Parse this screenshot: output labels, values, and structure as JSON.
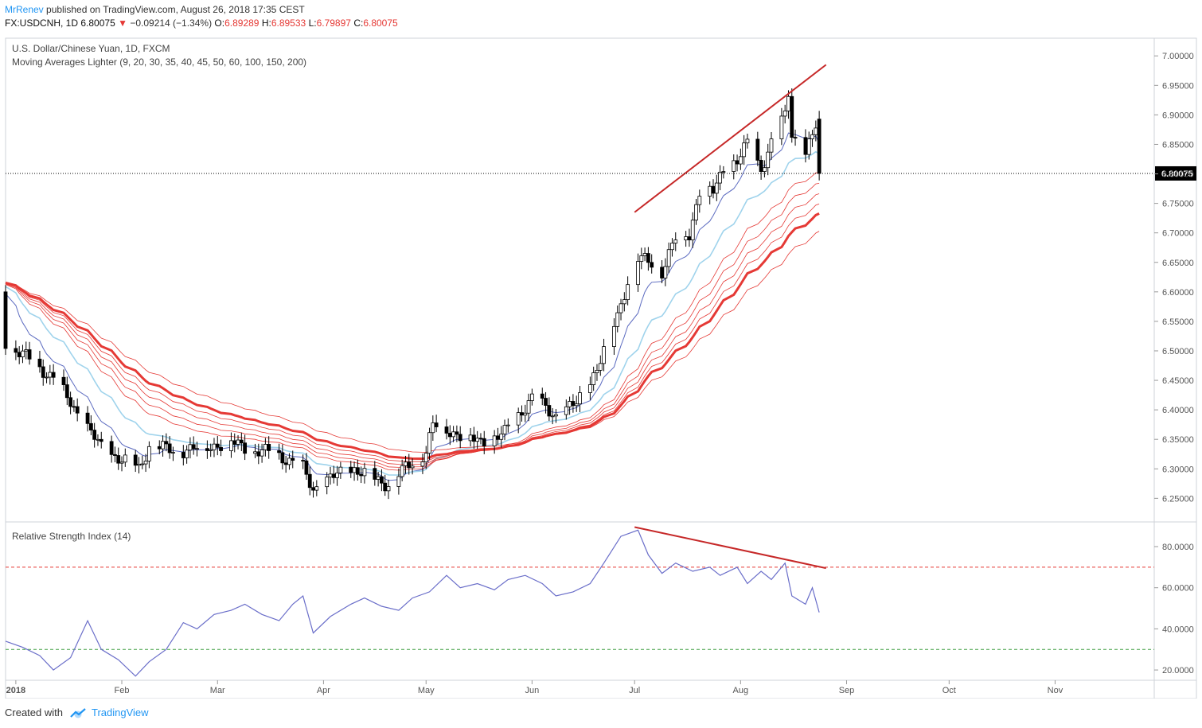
{
  "header": {
    "author": "MrRenev",
    "published": "published on TradingView.com, August 26, 2018 17:35 CEST",
    "symbol": "FX:USDCNH, 1D",
    "last": "6.80075",
    "change": "−0.09214 (−1.34%)",
    "o_label": "O:",
    "o_value": "6.89289",
    "h_label": "H:",
    "h_value": "6.89533",
    "l_label": "L:",
    "l_value": "6.79897",
    "c_label": "C:",
    "c_value": "6.80075"
  },
  "footer": {
    "created_with": "Created with",
    "brand": "TradingView"
  },
  "chart_data": [
    {
      "type": "candlestick",
      "title": "U.S. Dollar/Chinese Yuan, 1D, FXCM",
      "indicator": "Moving Averages Lighter (9, 20, 30, 35, 40, 45, 50, 60, 100, 150, 200)",
      "last_price_label": "6.80075",
      "ylim": [
        6.21,
        7.03
      ],
      "y_ticks": [
        "7.00000",
        "6.95000",
        "6.90000",
        "6.85000",
        "6.80000",
        "6.75000",
        "6.70000",
        "6.65000",
        "6.60000",
        "6.55000",
        "6.50000",
        "6.45000",
        "6.40000",
        "6.35000",
        "6.30000",
        "6.25000"
      ],
      "x_ticks": [
        "2018",
        "Feb",
        "Mar",
        "Apr",
        "May",
        "Jun",
        "Jul",
        "Aug",
        "Sep",
        "Oct",
        "Nov"
      ],
      "x_tick_dates": [
        "2018-01-01",
        "2018-02-01",
        "2018-03-01",
        "2018-04-01",
        "2018-05-01",
        "2018-06-01",
        "2018-07-01",
        "2018-08-01",
        "2018-09-01",
        "2018-10-01",
        "2018-11-01"
      ],
      "x_range": [
        "2017-12-29",
        "2018-11-30"
      ],
      "closes": [
        [
          "2017-12-29",
          6.515
        ],
        [
          "2018-01-12",
          6.455
        ],
        [
          "2018-01-26",
          6.335
        ],
        [
          "2018-02-06",
          6.3
        ],
        [
          "2018-02-09",
          6.34
        ],
        [
          "2018-02-16",
          6.33
        ],
        [
          "2018-02-23",
          6.335
        ],
        [
          "2018-03-05",
          6.345
        ],
        [
          "2018-03-12",
          6.33
        ],
        [
          "2018-03-19",
          6.325
        ],
        [
          "2018-03-26",
          6.3
        ],
        [
          "2018-03-29",
          6.265
        ],
        [
          "2018-04-05",
          6.29
        ],
        [
          "2018-04-10",
          6.3
        ],
        [
          "2018-04-17",
          6.28
        ],
        [
          "2018-04-20",
          6.275
        ],
        [
          "2018-04-25",
          6.3
        ],
        [
          "2018-05-01",
          6.33
        ],
        [
          "2018-05-03",
          6.375
        ],
        [
          "2018-05-10",
          6.36
        ],
        [
          "2018-05-17",
          6.345
        ],
        [
          "2018-05-24",
          6.36
        ],
        [
          "2018-05-29",
          6.4
        ],
        [
          "2018-06-01",
          6.42
        ],
        [
          "2018-06-08",
          6.39
        ],
        [
          "2018-06-14",
          6.41
        ],
        [
          "2018-06-20",
          6.47
        ],
        [
          "2018-06-26",
          6.56
        ],
        [
          "2018-06-29",
          6.62
        ],
        [
          "2018-07-02",
          6.655
        ],
        [
          "2018-07-06",
          6.65
        ],
        [
          "2018-07-09",
          6.635
        ],
        [
          "2018-07-13",
          6.69
        ],
        [
          "2018-07-17",
          6.7
        ],
        [
          "2018-07-20",
          6.77
        ],
        [
          "2018-07-24",
          6.77
        ],
        [
          "2018-07-27",
          6.81
        ],
        [
          "2018-07-31",
          6.82
        ],
        [
          "2018-08-03",
          6.85
        ],
        [
          "2018-08-07",
          6.81
        ],
        [
          "2018-08-10",
          6.85
        ],
        [
          "2018-08-14",
          6.9
        ],
        [
          "2018-08-15",
          6.94
        ],
        [
          "2018-08-16",
          6.87
        ],
        [
          "2018-08-20",
          6.83
        ],
        [
          "2018-08-23",
          6.88
        ],
        [
          "2018-08-24",
          6.80075
        ]
      ],
      "trendline_high": [
        [
          "2018-07-01",
          6.735
        ],
        [
          "2018-08-26",
          6.985
        ]
      ],
      "colors": {
        "ma_fast": "#5c6bc0",
        "ma_20": "#9fd3ec",
        "ma_red": "#e53935",
        "trendline": "#c62828"
      }
    },
    {
      "type": "line",
      "title": "Relative Strength Index (14)",
      "ylim": [
        15,
        92
      ],
      "y_ticks": [
        "80.0000",
        "60.0000",
        "40.0000",
        "20.0000"
      ],
      "levels": [
        70,
        30
      ],
      "x": [
        "2017-12-29",
        "2018-01-03",
        "2018-01-08",
        "2018-01-12",
        "2018-01-17",
        "2018-01-22",
        "2018-01-26",
        "2018-01-31",
        "2018-02-05",
        "2018-02-09",
        "2018-02-14",
        "2018-02-19",
        "2018-02-23",
        "2018-02-28",
        "2018-03-05",
        "2018-03-09",
        "2018-03-14",
        "2018-03-19",
        "2018-03-23",
        "2018-03-26",
        "2018-03-29",
        "2018-04-03",
        "2018-04-09",
        "2018-04-13",
        "2018-04-18",
        "2018-04-23",
        "2018-04-27",
        "2018-05-02",
        "2018-05-07",
        "2018-05-11",
        "2018-05-16",
        "2018-05-21",
        "2018-05-25",
        "2018-05-30",
        "2018-06-04",
        "2018-06-08",
        "2018-06-13",
        "2018-06-18",
        "2018-06-22",
        "2018-06-27",
        "2018-07-02",
        "2018-07-05",
        "2018-07-09",
        "2018-07-13",
        "2018-07-18",
        "2018-07-23",
        "2018-07-26",
        "2018-07-31",
        "2018-08-03",
        "2018-08-07",
        "2018-08-10",
        "2018-08-14",
        "2018-08-16",
        "2018-08-20",
        "2018-08-22",
        "2018-08-24"
      ],
      "values": [
        34,
        31,
        27,
        20,
        26,
        44,
        30,
        25,
        17,
        24,
        30,
        43,
        40,
        47,
        49,
        52,
        47,
        44,
        52,
        56,
        38,
        46,
        52,
        55,
        51,
        49,
        55,
        58,
        66,
        60,
        62,
        59,
        64,
        66,
        62,
        56,
        58,
        62,
        72,
        85,
        88,
        76,
        67,
        72,
        68,
        70,
        66,
        70,
        62,
        68,
        64,
        72,
        56,
        52,
        60,
        48
      ],
      "trendline": [
        [
          "2018-07-01",
          89.5
        ],
        [
          "2018-08-26",
          69.5
        ]
      ],
      "colors": {
        "line": "#6a6ec9",
        "overbought": "#e53935",
        "oversold": "#43a047",
        "trendline": "#c62828"
      }
    }
  ]
}
